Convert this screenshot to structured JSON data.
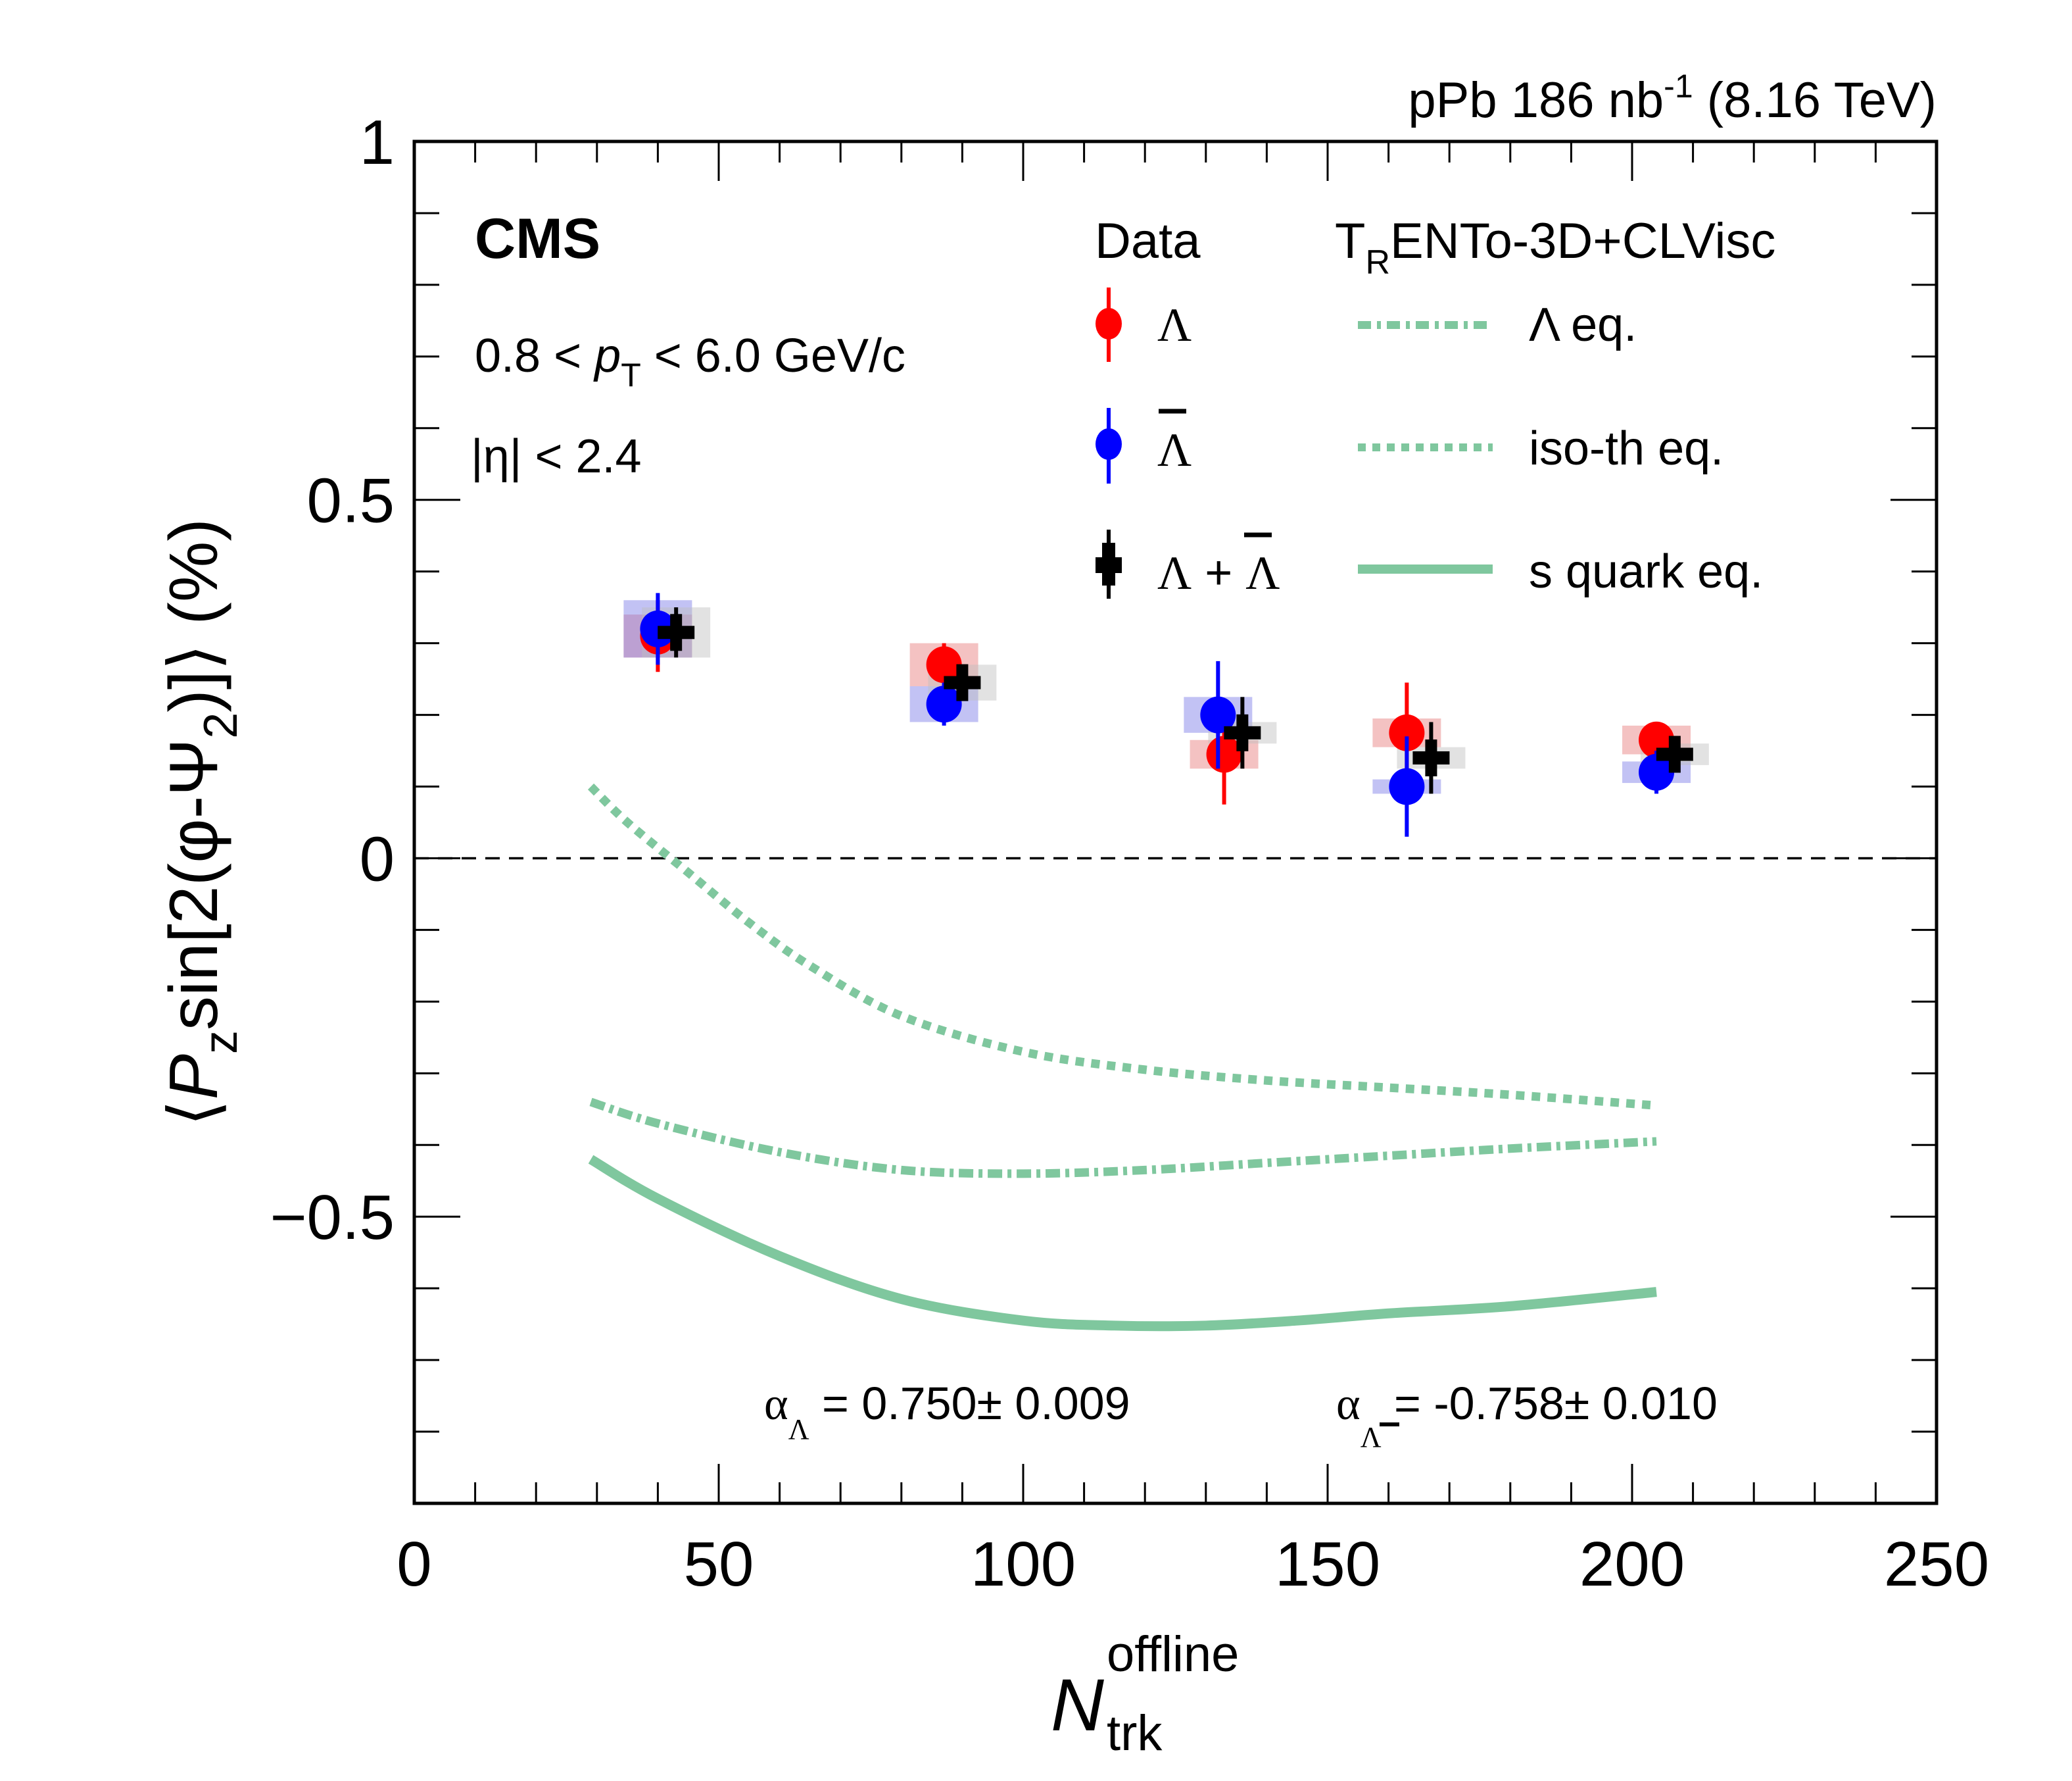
{
  "chart_data": {
    "type": "scatter",
    "title": "",
    "header_right": {
      "prefix": "pPb 186 nb",
      "sup": "-1",
      "suffix": " (8.16 TeV)"
    },
    "experiment": "CMS",
    "cuts": {
      "pt": {
        "pre": "0.8 < ",
        "var": "p",
        "sub": "T",
        "post": " < 6.0 GeV/c"
      },
      "eta": "|η| < 2.4"
    },
    "xlabel": {
      "main": "N",
      "sup": "offline",
      "sub": "trk"
    },
    "ylabel": "⟨P_z sin[2(φ-Ψ_2)]⟩ (%)",
    "ylabel_parts": {
      "open": "⟨",
      "P": "P",
      "z": "z",
      "mid": "sin[2(φ-Ψ",
      "two": "2",
      "close": ")]⟩ (%)"
    },
    "xlim": [
      0,
      250
    ],
    "ylim": [
      -0.9,
      1.0
    ],
    "xticks": [
      0,
      50,
      100,
      150,
      200,
      250
    ],
    "yticks": [
      -0.5,
      0,
      0.5,
      1
    ],
    "ytick_labels": [
      "−0.5",
      "0",
      "0.5",
      "1"
    ],
    "reference_line": {
      "y": 0,
      "style": "dashed"
    },
    "legend": {
      "data_header": "Data",
      "model_header": {
        "T": "T",
        "R": "R",
        "rest": "ENTo-3D+CLVisc"
      },
      "entries": [
        {
          "label": "Λ",
          "marker": "circle",
          "color": "#ff0000"
        },
        {
          "label": "Λ",
          "overline": true,
          "marker": "circle",
          "color": "#0000ff"
        },
        {
          "label_a": "Λ",
          "plus": " + ",
          "label_b": "Λ",
          "marker": "cross",
          "color": "#000000"
        },
        {
          "label": "Λ eq.",
          "style": "dash-dot",
          "color": "#7fc79e"
        },
        {
          "label": "iso-th eq.",
          "style": "dotted",
          "color": "#7fc79e"
        },
        {
          "label": "s quark eq.",
          "style": "solid",
          "color": "#7fc79e"
        }
      ]
    },
    "annotation": {
      "alpha_lambda": {
        "sym": "α",
        "sub": "Λ",
        "text": " = 0.750± 0.009"
      },
      "alpha_lambdabar": {
        "sym": "α",
        "sub": "Λ",
        "text": " = -0.758± 0.010"
      }
    },
    "series": [
      {
        "name": "Lambda",
        "color": "#ff0000",
        "syst_color": "rgba(230,120,120,0.45)",
        "points": [
          {
            "x": 40,
            "y": 0.31,
            "stat": 0.05,
            "syst": 0.03
          },
          {
            "x": 87,
            "y": 0.27,
            "stat": 0.03,
            "syst": 0.03
          },
          {
            "x": 133,
            "y": 0.145,
            "stat": 0.07,
            "syst": 0.02
          },
          {
            "x": 163,
            "y": 0.175,
            "stat": 0.07,
            "syst": 0.02
          },
          {
            "x": 204,
            "y": 0.165,
            "stat": 0.025,
            "syst": 0.02
          }
        ]
      },
      {
        "name": "Lambdabar",
        "color": "#0000ff",
        "syst_color": "rgba(120,120,230,0.45)",
        "points": [
          {
            "x": 40,
            "y": 0.32,
            "stat": 0.05,
            "syst": 0.04
          },
          {
            "x": 87,
            "y": 0.215,
            "stat": 0.03,
            "syst": 0.025
          },
          {
            "x": 132,
            "y": 0.2,
            "stat": 0.075,
            "syst": 0.025
          },
          {
            "x": 163,
            "y": 0.1,
            "stat": 0.07,
            "syst": 0.01
          },
          {
            "x": 204,
            "y": 0.12,
            "stat": 0.03,
            "syst": 0.015
          }
        ]
      },
      {
        "name": "Lambda+Lambdabar",
        "color": "#000000",
        "syst_color": "rgba(190,190,190,0.45)",
        "points": [
          {
            "x": 43,
            "y": 0.315,
            "stat": 0.035,
            "syst": 0.035
          },
          {
            "x": 90,
            "y": 0.245,
            "stat": 0.025,
            "syst": 0.025
          },
          {
            "x": 136,
            "y": 0.175,
            "stat": 0.05,
            "syst": 0.015
          },
          {
            "x": 167,
            "y": 0.14,
            "stat": 0.05,
            "syst": 0.015
          },
          {
            "x": 207,
            "y": 0.145,
            "stat": 0.02,
            "syst": 0.015
          }
        ]
      }
    ],
    "curves": [
      {
        "name": "Lambda eq.",
        "style": "dash-dot",
        "color": "#7fc79e",
        "x": [
          29,
          40,
          60,
          80,
          100,
          120,
          140,
          160,
          180,
          204
        ],
        "y": [
          -0.34,
          -0.37,
          -0.41,
          -0.435,
          -0.44,
          -0.435,
          -0.425,
          -0.415,
          -0.405,
          -0.395
        ]
      },
      {
        "name": "iso-th eq.",
        "style": "dotted",
        "color": "#7fc79e",
        "x": [
          29,
          35,
          45,
          55,
          65,
          80,
          100,
          120,
          140,
          160,
          180,
          204
        ],
        "y": [
          0.1,
          0.05,
          -0.02,
          -0.09,
          -0.15,
          -0.22,
          -0.27,
          -0.295,
          -0.31,
          -0.32,
          -0.33,
          -0.345
        ]
      },
      {
        "name": "s quark eq.",
        "style": "solid",
        "color": "#7fc79e",
        "x": [
          29,
          40,
          60,
          80,
          100,
          115,
          130,
          145,
          160,
          180,
          204
        ],
        "y": [
          -0.42,
          -0.475,
          -0.555,
          -0.615,
          -0.645,
          -0.652,
          -0.652,
          -0.645,
          -0.635,
          -0.625,
          -0.605
        ]
      }
    ]
  }
}
